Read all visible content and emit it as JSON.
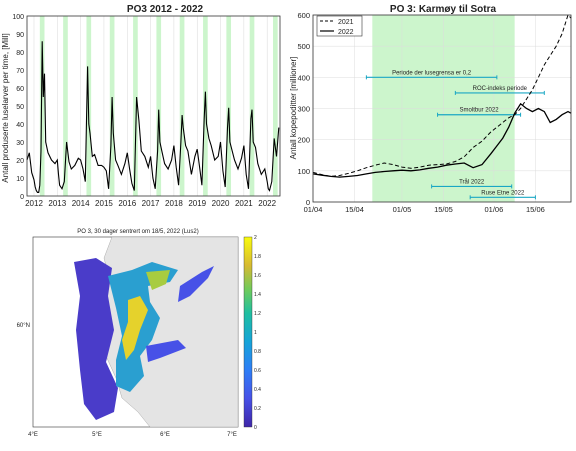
{
  "chart_data": [
    {
      "type": "line",
      "title": "PO3 2012 - 2022",
      "ylabel": "Antall produserte luselarver per time, [Mill]",
      "xlabel": "",
      "x_range": [
        2011.7,
        2022.55
      ],
      "ylim": [
        0,
        100
      ],
      "x_ticks": [
        "2012",
        "2013",
        "2014",
        "2015",
        "2016",
        "2017",
        "2018",
        "2019",
        "2020",
        "2021",
        "2022"
      ],
      "y_ticks": [
        "0",
        "10",
        "20",
        "30",
        "40",
        "50",
        "60",
        "70",
        "80",
        "90",
        "100"
      ],
      "grid": "vertical",
      "highlight_bands": [
        [
          2012.25,
          2012.45
        ],
        [
          2013.25,
          2013.45
        ],
        [
          2014.25,
          2014.45
        ],
        [
          2015.25,
          2015.45
        ],
        [
          2016.25,
          2016.45
        ],
        [
          2017.25,
          2017.45
        ],
        [
          2018.25,
          2018.45
        ],
        [
          2019.25,
          2019.45
        ],
        [
          2020.25,
          2020.45
        ],
        [
          2021.25,
          2021.45
        ],
        [
          2022.25,
          2022.45
        ]
      ],
      "highlight_color": "#ccf5cc",
      "series": [
        {
          "color": "#000000",
          "x": [
            2011.7,
            2011.8,
            2011.9,
            2012.0,
            2012.05,
            2012.1,
            2012.15,
            2012.2,
            2012.25,
            2012.3,
            2012.35,
            2012.4,
            2012.45,
            2012.5,
            2012.6,
            2012.75,
            2012.9,
            2013.0,
            2013.05,
            2013.1,
            2013.2,
            2013.3,
            2013.4,
            2013.5,
            2013.6,
            2013.75,
            2013.9,
            2014.0,
            2014.1,
            2014.2,
            2014.25,
            2014.3,
            2014.35,
            2014.4,
            2014.5,
            2014.6,
            2014.75,
            2014.9,
            2015.0,
            2015.1,
            2015.2,
            2015.3,
            2015.35,
            2015.4,
            2015.5,
            2015.6,
            2015.75,
            2015.9,
            2016.0,
            2016.1,
            2016.2,
            2016.3,
            2016.35,
            2016.4,
            2016.5,
            2016.6,
            2016.75,
            2016.9,
            2017.0,
            2017.1,
            2017.2,
            2017.3,
            2017.35,
            2017.4,
            2017.5,
            2017.6,
            2017.75,
            2017.9,
            2018.0,
            2018.1,
            2018.2,
            2018.3,
            2018.35,
            2018.4,
            2018.5,
            2018.6,
            2018.75,
            2018.9,
            2019.0,
            2019.1,
            2019.2,
            2019.3,
            2019.35,
            2019.4,
            2019.5,
            2019.6,
            2019.75,
            2019.9,
            2020.0,
            2020.1,
            2020.2,
            2020.3,
            2020.35,
            2020.4,
            2020.5,
            2020.6,
            2020.75,
            2020.9,
            2021.0,
            2021.1,
            2021.2,
            2021.3,
            2021.35,
            2021.4,
            2021.5,
            2021.6,
            2021.75,
            2021.9,
            2022.0,
            2022.05,
            2022.1,
            2022.2,
            2022.3,
            2022.4,
            2022.5
          ],
          "y": [
            20,
            24,
            13,
            9,
            5,
            3,
            2,
            2,
            6,
            25,
            86,
            55,
            68,
            30,
            24,
            20,
            18,
            20,
            12,
            6,
            4,
            8,
            30,
            19,
            15,
            17,
            21,
            20,
            15,
            8,
            42,
            72,
            40,
            35,
            22,
            23,
            17,
            17,
            16,
            14,
            4,
            28,
            55,
            35,
            20,
            17,
            12,
            18,
            24,
            15,
            7,
            3,
            28,
            55,
            42,
            25,
            22,
            16,
            22,
            10,
            4,
            25,
            48,
            30,
            24,
            18,
            15,
            20,
            28,
            16,
            6,
            30,
            45,
            38,
            28,
            25,
            12,
            22,
            26,
            16,
            6,
            43,
            58,
            40,
            32,
            28,
            20,
            22,
            30,
            14,
            5,
            38,
            49,
            30,
            25,
            20,
            15,
            21,
            28,
            12,
            4,
            43,
            48,
            30,
            27,
            18,
            12,
            15,
            8,
            4,
            3,
            8,
            32,
            22,
            38
          ]
        }
      ]
    },
    {
      "type": "line",
      "title": "PO 3: Karmøy til Sotra",
      "ylabel": "Antall kopepoditter [millioner]",
      "xlabel": "",
      "x_ticks": [
        "01/04",
        "15/04",
        "01/05",
        "15/05",
        "01/06",
        "15/06"
      ],
      "x_tick_days": [
        0,
        14,
        30,
        44,
        61,
        75
      ],
      "x_range": [
        0,
        87
      ],
      "ylim": [
        0,
        600
      ],
      "y_ticks": [
        "0",
        "100",
        "200",
        "300",
        "400",
        "500",
        "600"
      ],
      "grid": "on",
      "legend": "top-left",
      "highlight_band": [
        20,
        68
      ],
      "highlight_color": "#ccf5cc",
      "series": [
        {
          "name": "2021",
          "style": "dashed",
          "x": [
            0,
            3,
            6,
            9,
            12,
            15,
            18,
            21,
            24,
            27,
            30,
            33,
            36,
            39,
            42,
            45,
            48,
            51,
            54,
            57,
            60,
            62,
            64,
            66,
            68,
            70,
            72,
            74,
            76,
            78,
            80,
            82,
            84,
            86,
            87
          ],
          "y": [
            95,
            88,
            82,
            85,
            92,
            100,
            110,
            118,
            125,
            120,
            112,
            108,
            112,
            118,
            120,
            122,
            130,
            145,
            175,
            195,
            225,
            240,
            255,
            270,
            280,
            300,
            330,
            360,
            400,
            440,
            470,
            500,
            540,
            600,
            590
          ]
        },
        {
          "name": "2022",
          "style": "solid",
          "x": [
            0,
            3,
            6,
            9,
            12,
            15,
            18,
            21,
            24,
            27,
            30,
            33,
            36,
            39,
            42,
            45,
            48,
            51,
            54,
            57,
            60,
            62,
            64,
            66,
            68,
            70,
            72,
            74,
            76,
            78,
            80,
            82,
            84,
            86,
            87
          ],
          "y": [
            90,
            86,
            82,
            80,
            82,
            85,
            90,
            95,
            98,
            100,
            102,
            100,
            103,
            108,
            112,
            118,
            122,
            125,
            110,
            120,
            155,
            180,
            205,
            240,
            285,
            315,
            300,
            290,
            300,
            290,
            255,
            265,
            280,
            290,
            285
          ]
        }
      ],
      "annotations": [
        {
          "label": "Periode der lusegrensa er 0,2",
          "x_start": 18,
          "x_end": 62,
          "y": 400
        },
        {
          "label": "ROC-indeks periode",
          "x_start": 48,
          "x_end": 78,
          "y": 350
        },
        {
          "label": "Smoltbur 2022",
          "x_start": 42,
          "x_end": 70,
          "y": 280
        },
        {
          "label": "Trål 2022",
          "x_start": 40,
          "x_end": 67,
          "y": 50
        },
        {
          "label": "Ruse Etne 2022",
          "x_start": 53,
          "x_end": 75,
          "y": 15
        }
      ]
    },
    {
      "type": "heatmap",
      "title": "PO 3, 30 dager sentrert om 18/5, 2022 (Lus2)",
      "colorbar_range": [
        0,
        2
      ],
      "colorbar_ticks": [
        "0",
        "0.2",
        "0.4",
        "0.6",
        "0.8",
        "1",
        "1.2",
        "1.4",
        "1.6",
        "1.8",
        "2"
      ],
      "x_ticks": [
        "4°E",
        "5°E",
        "6°E",
        "7°E"
      ],
      "y_ticks": [
        "60°N"
      ]
    }
  ]
}
